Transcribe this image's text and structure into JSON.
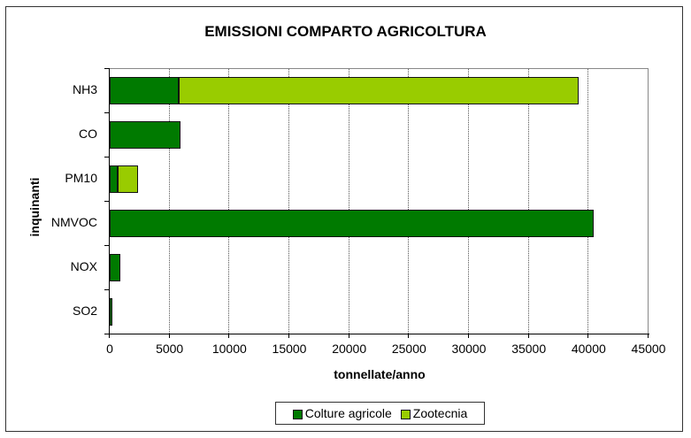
{
  "chart_data": {
    "type": "bar",
    "orientation": "horizontal",
    "stacked": true,
    "title": "EMISSIONI COMPARTO AGRICOLTURA",
    "xlabel": "tonnellate/anno",
    "ylabel": "inquinanti",
    "categories": [
      "NH3",
      "CO",
      "PM10",
      "NMVOC",
      "NOX",
      "SO2"
    ],
    "series": [
      {
        "name": "Colture agricole",
        "color": "#007A00",
        "values": [
          5800,
          5900,
          700,
          40400,
          900,
          150
        ]
      },
      {
        "name": "Zootecnia",
        "color": "#99CC00",
        "values": [
          33400,
          0,
          1700,
          0,
          0,
          0
        ]
      }
    ],
    "xlim": [
      0,
      45000
    ],
    "xticks": [
      "0",
      "5000",
      "10000",
      "15000",
      "20000",
      "25000",
      "30000",
      "35000",
      "40000",
      "45000"
    ],
    "grid": "vertical dotted",
    "legend_position": "bottom"
  },
  "legend": {
    "items": [
      {
        "label": "Colture agricole",
        "color": "#007A00"
      },
      {
        "label": "Zootecnia",
        "color": "#99CC00"
      }
    ]
  }
}
